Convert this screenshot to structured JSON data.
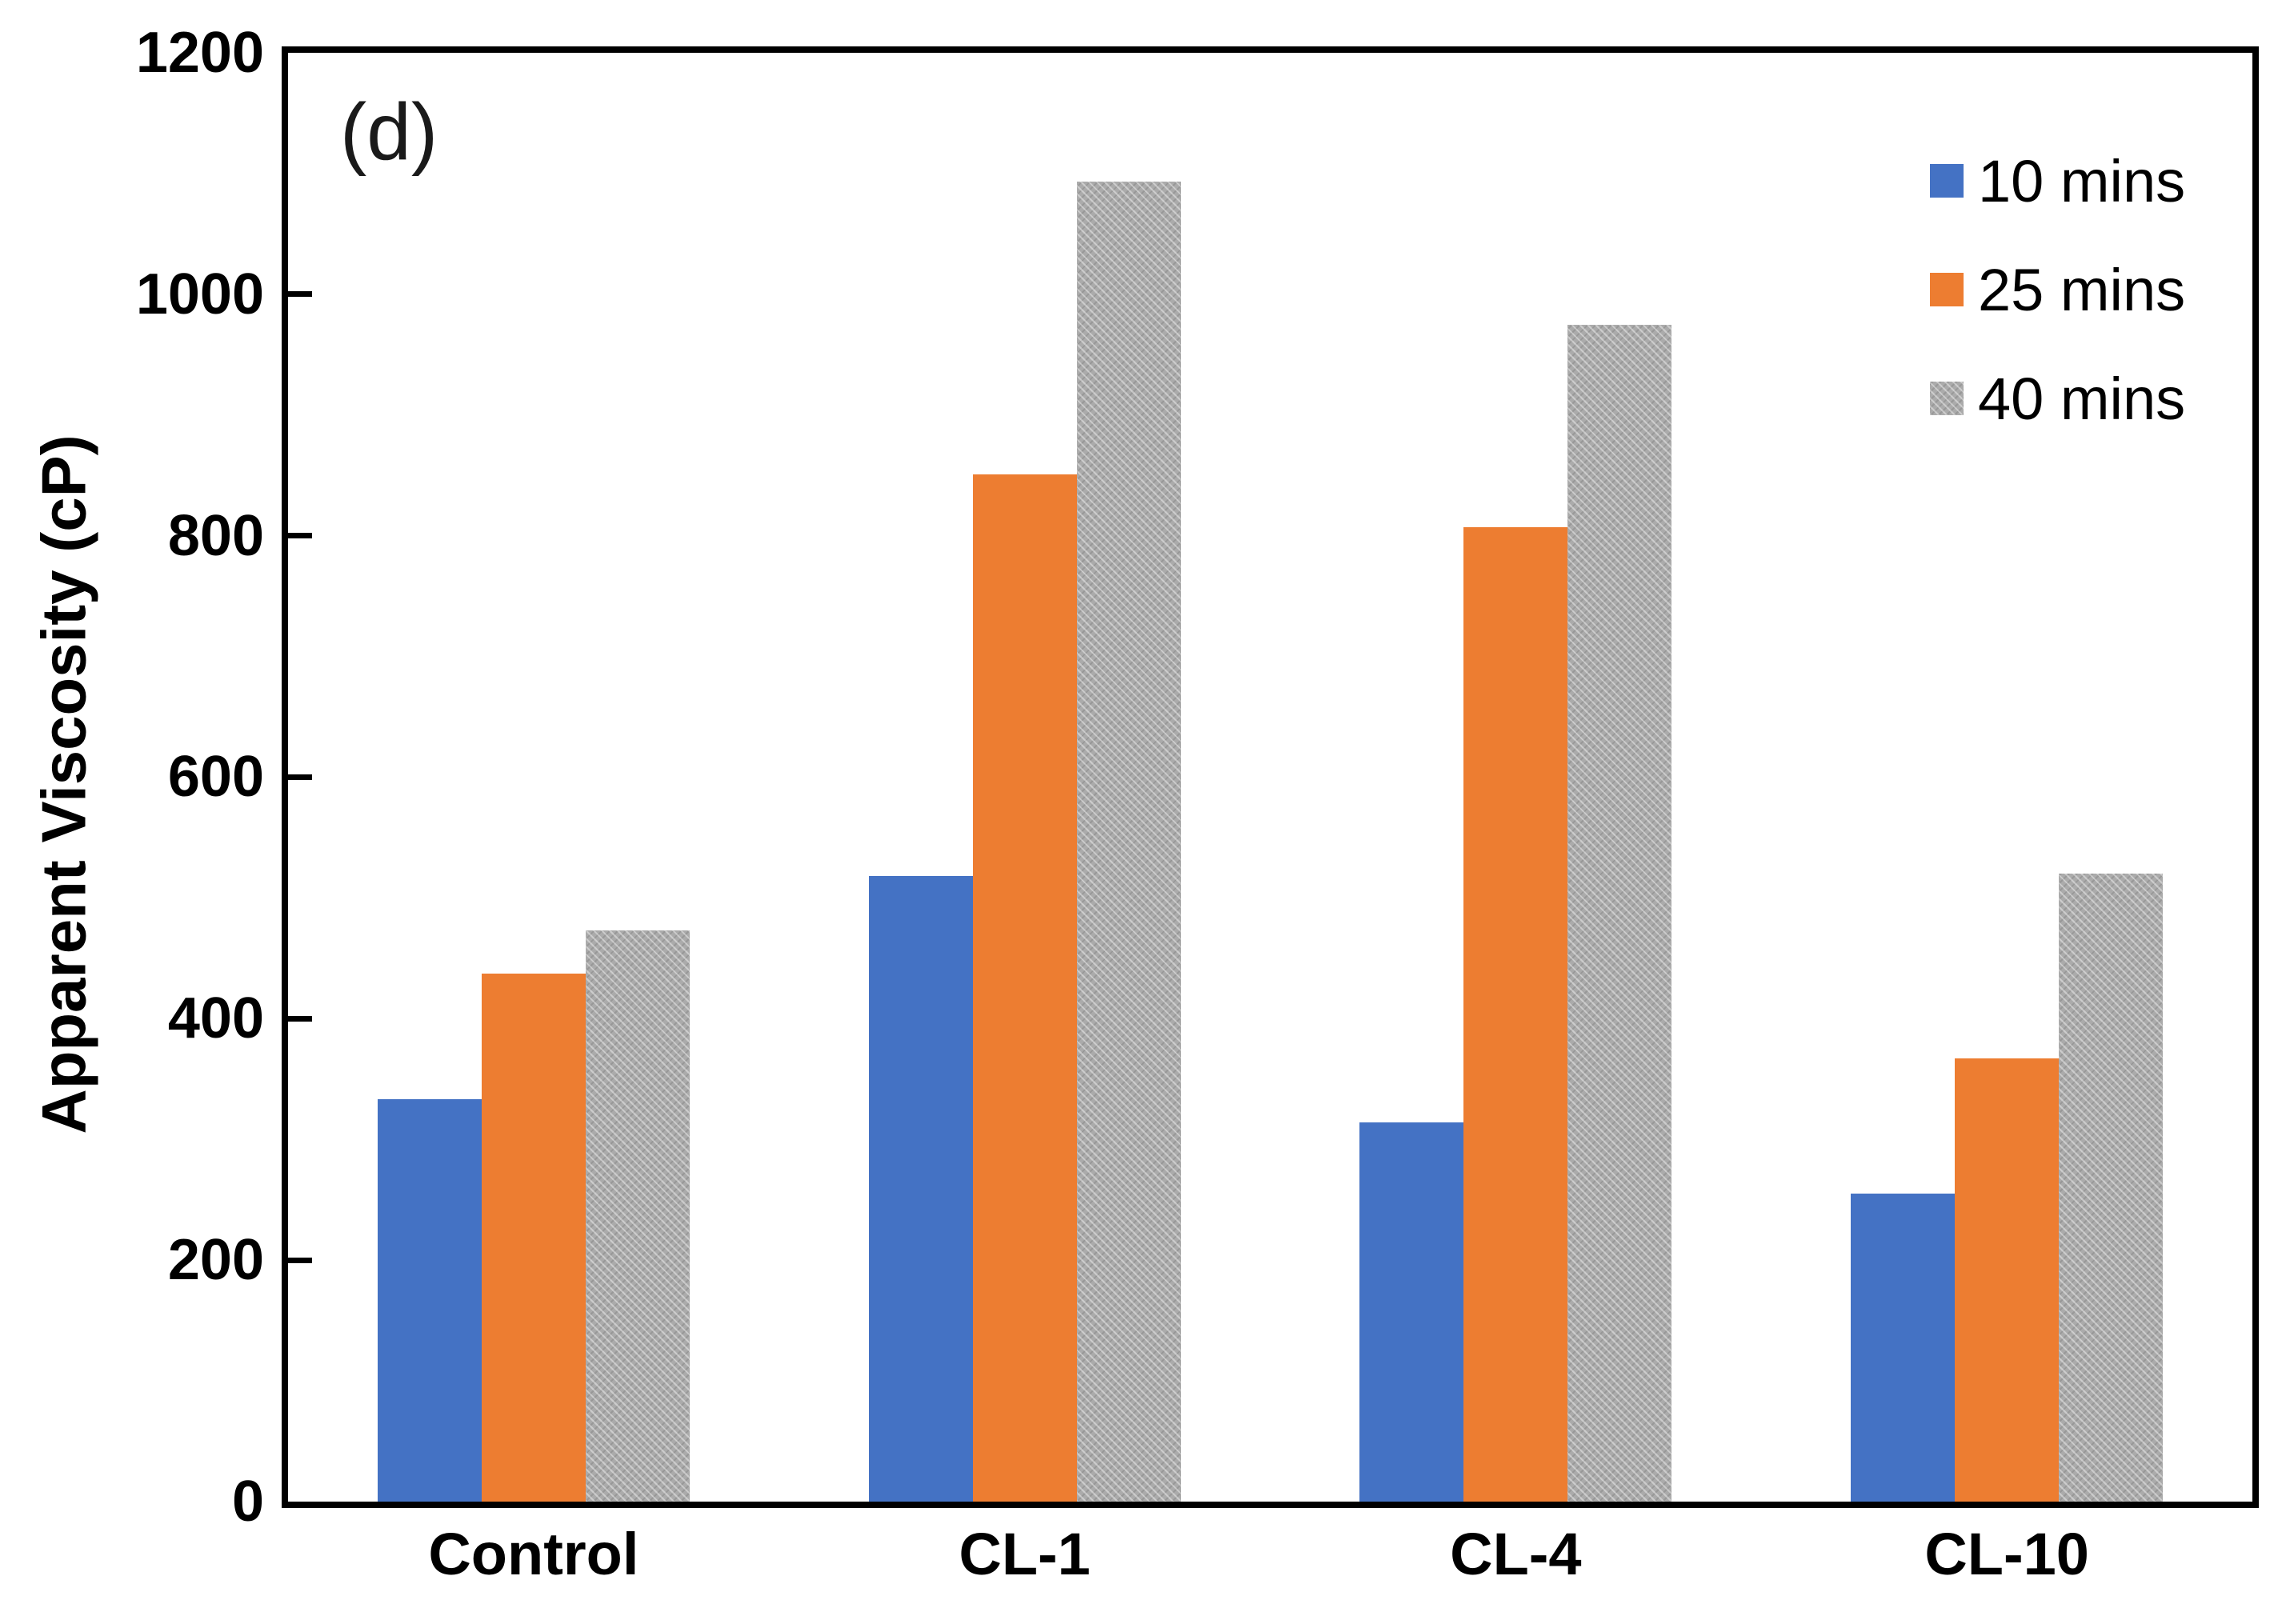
{
  "chart_data": {
    "type": "bar",
    "panel_label": "(d)",
    "title": "",
    "xlabel": "",
    "ylabel": "Apparent Viscosity (cP)",
    "categories": [
      "Control",
      "CL-1",
      "CL-4",
      "CL-10"
    ],
    "series": [
      {
        "name": "10 mins",
        "color": "#4472C4",
        "pattern": false,
        "values": [
          333,
          518,
          314,
          255
        ]
      },
      {
        "name": "25 mins",
        "color": "#ED7D31",
        "pattern": false,
        "values": [
          437,
          851,
          807,
          367
        ]
      },
      {
        "name": "40 mins",
        "color": "#ABABAB",
        "pattern": true,
        "values": [
          473,
          1093,
          975,
          520
        ]
      }
    ],
    "ylim": [
      0,
      1200
    ],
    "yticks": [
      0,
      200,
      400,
      600,
      800,
      1000,
      1200
    ],
    "grid": false,
    "legend_position": "top-right-inside",
    "frame": "full-box",
    "tick_style": "inside"
  }
}
